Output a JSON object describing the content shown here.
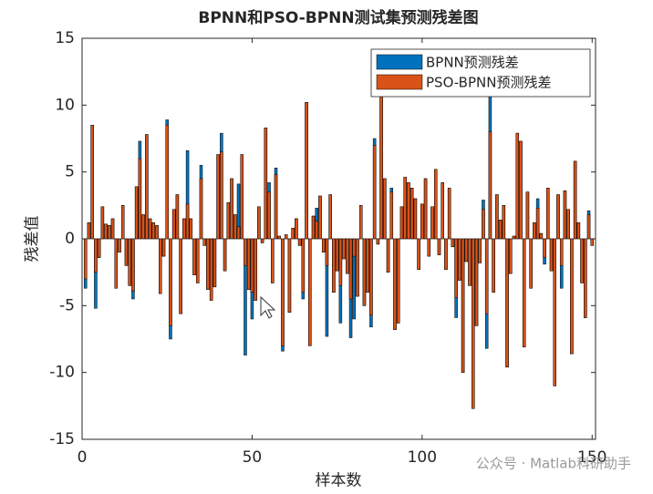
{
  "chart_data": {
    "type": "bar",
    "title": "BPNN和PSO-BPNN测试集预测残差图",
    "xlabel": "样本数",
    "ylabel": "残差值",
    "x": [
      1,
      2,
      3,
      4,
      5,
      6,
      7,
      8,
      9,
      10,
      11,
      12,
      13,
      14,
      15,
      16,
      17,
      18,
      19,
      20,
      21,
      22,
      23,
      24,
      25,
      26,
      27,
      28,
      29,
      30,
      31,
      32,
      33,
      34,
      35,
      36,
      37,
      38,
      39,
      40,
      41,
      42,
      43,
      44,
      45,
      46,
      47,
      48,
      49,
      50,
      51,
      52,
      53,
      54,
      55,
      56,
      57,
      58,
      59,
      60,
      61,
      62,
      63,
      64,
      65,
      66,
      67,
      68,
      69,
      70,
      71,
      72,
      73,
      74,
      75,
      76,
      77,
      78,
      79,
      80,
      81,
      82,
      83,
      84,
      85,
      86,
      87,
      88,
      89,
      90,
      91,
      92,
      93,
      94,
      95,
      96,
      97,
      98,
      99,
      100,
      101,
      102,
      103,
      104,
      105,
      106,
      107,
      108,
      109,
      110,
      111,
      112,
      113,
      114,
      115,
      116,
      117,
      118,
      119,
      120,
      121,
      122,
      123,
      124,
      125,
      126,
      127,
      128,
      129,
      130,
      131,
      132,
      133,
      134,
      135,
      136,
      137,
      138,
      139,
      140,
      141,
      142,
      143,
      144,
      145,
      146,
      147,
      148,
      149,
      150
    ],
    "series": [
      {
        "name": "BPNN预测残差",
        "color": "#0072bd",
        "values": [
          -3.7,
          1.2,
          8.5,
          -5.2,
          -1.4,
          2.4,
          1.1,
          1.0,
          1.5,
          -3.7,
          -1.0,
          2.5,
          -2,
          -3.5,
          -4.5,
          3.9,
          7.3,
          1.8,
          7.8,
          1.5,
          1.2,
          1.0,
          -4.1,
          -1.3,
          8.9,
          -7.5,
          2.2,
          3.3,
          -5.6,
          1.5,
          6.6,
          1.5,
          -2.7,
          -3.3,
          5.5,
          -0.5,
          -3.8,
          -4.6,
          -3.6,
          6.3,
          7.9,
          -2.4,
          2.7,
          4.5,
          1.8,
          4.1,
          6.3,
          -8.7,
          -3.8,
          -6,
          -4.6,
          2.4,
          -0.3,
          8.3,
          4.2,
          -3.3,
          5.3,
          0.2,
          -8.4,
          0.3,
          -5.5,
          0.8,
          1.5,
          -0.5,
          -4.5,
          10.2,
          -8,
          1.7,
          2.3,
          3.2,
          -1,
          -7.3,
          3.3,
          -4,
          -2.4,
          -6.3,
          -1.5,
          -2.6,
          -7.4,
          -6,
          -4.3,
          2.5,
          -5,
          -4,
          -6.6,
          7.5,
          -0.4,
          11.3,
          4.5,
          -2.5,
          3.8,
          -6.8,
          -6.3,
          2.4,
          4.6,
          4.2,
          3.8,
          3.0,
          -2.3,
          2.6,
          4.5,
          -1.3,
          2.4,
          5.2,
          -1.2,
          4.2,
          -2.3,
          3.8,
          -0.6,
          -5.9,
          -3.1,
          -10,
          -1.7,
          -3.5,
          -12.7,
          -6.5,
          -1.8,
          2.9,
          -8.2,
          14,
          -4,
          3.3,
          1.4,
          2.5,
          -9.6,
          -2.6,
          0.2,
          7.9,
          7.3,
          -8.1,
          3.5,
          -3.7,
          1.2,
          3.0,
          0.4,
          -1.9,
          3.8,
          -2.4,
          -11,
          3.3,
          -3.7,
          3.6,
          2.2,
          -8.6,
          5.8,
          1.2,
          -3.3,
          -5.9,
          2.1,
          -0.5
        ]
      },
      {
        "name": "PSO-BPNN预测残差",
        "color": "#d95319",
        "values": [
          -3,
          1.2,
          8.5,
          -2.5,
          -1.4,
          2.4,
          1.1,
          1.0,
          1.5,
          -3.7,
          -1.0,
          2.5,
          -2,
          -3.5,
          -3.9,
          3.9,
          6,
          1.8,
          7.8,
          1.5,
          1.2,
          1.0,
          -4.1,
          -1.3,
          8.5,
          -6.5,
          2.2,
          3.3,
          -5.6,
          1.5,
          2.6,
          1.5,
          -2.7,
          -3.3,
          4.5,
          -0.5,
          -3.8,
          -4.6,
          -3.6,
          6.3,
          6.5,
          -2.4,
          2.7,
          4.5,
          1.8,
          0.9,
          6.3,
          -2,
          -3.8,
          -4,
          -4.6,
          2.4,
          -0.3,
          8.3,
          3.5,
          -3.3,
          4.8,
          0.2,
          -8,
          0.3,
          -5.5,
          0.8,
          1.5,
          -0.5,
          -4,
          10.2,
          -8,
          1.7,
          1.3,
          3.2,
          -1,
          -2,
          3.3,
          -4,
          -2.4,
          -3.5,
          -1.5,
          -2.6,
          -4.5,
          -1.3,
          -4.3,
          2.5,
          -5,
          -4,
          -5.7,
          7,
          -0.4,
          10.9,
          4.5,
          -2.5,
          3.5,
          -6.8,
          -6.3,
          2.4,
          4.6,
          4.2,
          3.8,
          3.0,
          -2.3,
          2.6,
          4.5,
          -1.3,
          2.4,
          5.2,
          -1.2,
          4.2,
          -2.3,
          3.8,
          -0.6,
          -4.4,
          -3.1,
          -10,
          -1.7,
          -3.5,
          -12.7,
          -6.5,
          -1.8,
          2.2,
          -5.6,
          8,
          -4,
          3.3,
          1.4,
          2.5,
          -9.6,
          -2.6,
          0.2,
          7.9,
          7.3,
          -8.1,
          3.5,
          -3.7,
          1.2,
          2.3,
          0.4,
          -1.4,
          3.8,
          -2.4,
          -11,
          3.3,
          -2,
          3.6,
          2.2,
          -8.6,
          5.8,
          1.2,
          -3.3,
          -5.9,
          1.8,
          -0.5
        ]
      }
    ],
    "xlim": [
      0,
      151
    ],
    "xticks": [
      0,
      50,
      100,
      150
    ],
    "ylim": [
      -15,
      15
    ],
    "yticks": [
      -15,
      -10,
      -5,
      0,
      5,
      10,
      15
    ],
    "legend": "upper right",
    "grid": false,
    "annotation": "公众号 · Matlab科研助手"
  }
}
